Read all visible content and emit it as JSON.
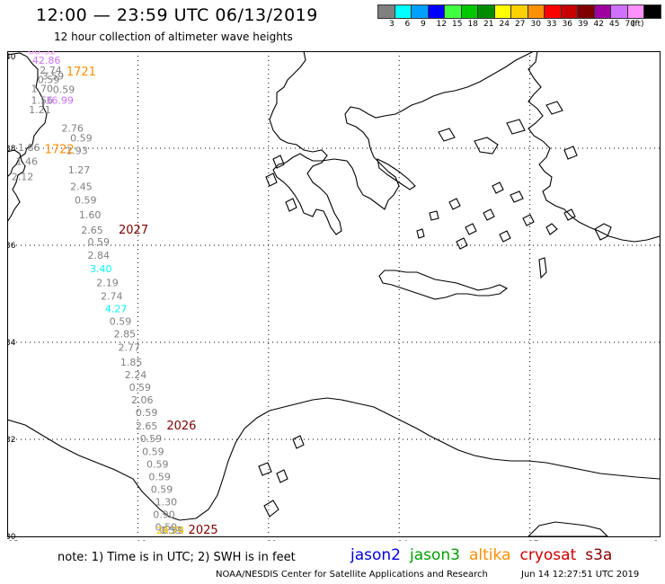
{
  "header": {
    "title": "12:00 — 23:59 UTC 06/13/2019",
    "subtitle": "12 hour collection of altimeter wave heights"
  },
  "color_scale": {
    "unit": "(ft)",
    "bins": [
      {
        "label": "3",
        "color": "#808080"
      },
      {
        "label": "6",
        "color": "#00ffff"
      },
      {
        "label": "9",
        "color": "#00a0ff"
      },
      {
        "label": "12",
        "color": "#0000ff"
      },
      {
        "label": "15",
        "color": "#40ff40"
      },
      {
        "label": "18",
        "color": "#00c800"
      },
      {
        "label": "21",
        "color": "#008c00"
      },
      {
        "label": "24",
        "color": "#ffff00"
      },
      {
        "label": "27",
        "color": "#ffd000"
      },
      {
        "label": "30",
        "color": "#ff9000"
      },
      {
        "label": "33",
        "color": "#ff0000"
      },
      {
        "label": "36",
        "color": "#c80000"
      },
      {
        "label": "39",
        "color": "#800000"
      },
      {
        "label": "42",
        "color": "#a000a0"
      },
      {
        "label": "45",
        "color": "#d070ff"
      },
      {
        "label": "70",
        "color": "#ff90ff"
      },
      {
        "label": "",
        "color": "#000000"
      }
    ]
  },
  "map": {
    "lon_labels": [
      "15",
      "18",
      "21",
      "24",
      "27",
      "30"
    ],
    "lat_labels": [
      "40",
      "38",
      "36",
      "34",
      "32",
      "30"
    ],
    "lon_range": [
      15,
      30
    ],
    "lat_range": [
      30,
      40
    ],
    "grid": "dotted",
    "wave_heights": [
      {
        "value": "68.52",
        "color": "#ff90ff",
        "lon": 15.8,
        "lat": 39.94
      },
      {
        "value": "42.86",
        "color": "#d070ff",
        "lon": 15.9,
        "lat": 39.74
      },
      {
        "value": "2.74",
        "color": "#808080",
        "lon": 16.0,
        "lat": 39.54
      },
      {
        "value": "3.59",
        "color": "#808080",
        "lon": 16.05,
        "lat": 39.42
      },
      {
        "value": "0.59",
        "color": "#808080",
        "lon": 15.95,
        "lat": 39.34
      },
      {
        "value": "1.70",
        "color": "#808080",
        "lon": 15.8,
        "lat": 39.16
      },
      {
        "value": "0.59",
        "color": "#808080",
        "lon": 16.3,
        "lat": 39.14
      },
      {
        "value": "1.56",
        "color": "#808080",
        "lon": 15.8,
        "lat": 38.92
      },
      {
        "value": "36.99",
        "color": "#d070ff",
        "lon": 16.2,
        "lat": 38.92
      },
      {
        "value": "1.21",
        "color": "#808080",
        "lon": 15.75,
        "lat": 38.72
      },
      {
        "value": "2.76",
        "color": "#808080",
        "lon": 16.5,
        "lat": 38.34
      },
      {
        "value": "0.59",
        "color": "#808080",
        "lon": 16.7,
        "lat": 38.14
      },
      {
        "value": "1.86",
        "color": "#808080",
        "lon": 15.5,
        "lat": 37.94
      },
      {
        "value": "1.93",
        "color": "#808080",
        "lon": 16.6,
        "lat": 37.88
      },
      {
        "value": "1.46",
        "color": "#808080",
        "lon": 15.45,
        "lat": 37.66
      },
      {
        "value": "1.27",
        "color": "#808080",
        "lon": 16.65,
        "lat": 37.48
      },
      {
        "value": "2.12",
        "color": "#808080",
        "lon": 15.35,
        "lat": 37.34
      },
      {
        "value": "2.45",
        "color": "#808080",
        "lon": 16.7,
        "lat": 37.14
      },
      {
        "value": "0.59",
        "color": "#808080",
        "lon": 16.8,
        "lat": 36.86
      },
      {
        "value": "1.60",
        "color": "#808080",
        "lon": 16.9,
        "lat": 36.56
      },
      {
        "value": "2.65",
        "color": "#808080",
        "lon": 16.95,
        "lat": 36.24
      },
      {
        "value": "0.59",
        "color": "#808080",
        "lon": 17.1,
        "lat": 36.0
      },
      {
        "value": "2.84",
        "color": "#808080",
        "lon": 17.1,
        "lat": 35.72
      },
      {
        "value": "3.40",
        "color": "#00ffff",
        "lon": 17.15,
        "lat": 35.44
      },
      {
        "value": "2.19",
        "color": "#808080",
        "lon": 17.3,
        "lat": 35.16
      },
      {
        "value": "2.74",
        "color": "#808080",
        "lon": 17.4,
        "lat": 34.88
      },
      {
        "value": "4.27",
        "color": "#00ffff",
        "lon": 17.5,
        "lat": 34.62
      },
      {
        "value": "0.59",
        "color": "#808080",
        "lon": 17.6,
        "lat": 34.36
      },
      {
        "value": "2.85",
        "color": "#808080",
        "lon": 17.7,
        "lat": 34.1
      },
      {
        "value": "2.77",
        "color": "#808080",
        "lon": 17.8,
        "lat": 33.82
      },
      {
        "value": "1.85",
        "color": "#808080",
        "lon": 17.85,
        "lat": 33.52
      },
      {
        "value": "2.24",
        "color": "#808080",
        "lon": 17.95,
        "lat": 33.26
      },
      {
        "value": "0.59",
        "color": "#808080",
        "lon": 18.05,
        "lat": 33.0
      },
      {
        "value": "2.06",
        "color": "#808080",
        "lon": 18.1,
        "lat": 32.74
      },
      {
        "value": "0.59",
        "color": "#808080",
        "lon": 18.2,
        "lat": 32.48
      },
      {
        "value": "2.65",
        "color": "#808080",
        "lon": 18.2,
        "lat": 32.2
      },
      {
        "value": "0.59",
        "color": "#808080",
        "lon": 18.3,
        "lat": 31.94
      },
      {
        "value": "0.59",
        "color": "#808080",
        "lon": 18.35,
        "lat": 31.68
      },
      {
        "value": "0.59",
        "color": "#808080",
        "lon": 18.45,
        "lat": 31.42
      },
      {
        "value": "0.59",
        "color": "#808080",
        "lon": 18.5,
        "lat": 31.16
      },
      {
        "value": "0.59",
        "color": "#808080",
        "lon": 18.55,
        "lat": 30.9
      },
      {
        "value": "1.30",
        "color": "#808080",
        "lon": 18.65,
        "lat": 30.64
      },
      {
        "value": "0.90",
        "color": "#808080",
        "lon": 18.6,
        "lat": 30.38
      },
      {
        "value": "0.59",
        "color": "#808080",
        "lon": 18.65,
        "lat": 30.12
      },
      {
        "value": "0.59",
        "color": "#808080",
        "lon": 18.75,
        "lat": 29.86
      },
      {
        "value": "0.59",
        "color": "#808080",
        "lon": 18.8,
        "lat": 29.6
      },
      {
        "value": "24.74",
        "color": "#ffd000",
        "lon": 18.75,
        "lat": 29.36
      }
    ],
    "pass_times": [
      {
        "time": "1721",
        "color": "#ff9000",
        "lon": 16.7,
        "lat": 39.5
      },
      {
        "time": "1722",
        "color": "#ff9000",
        "lon": 16.2,
        "lat": 37.9
      },
      {
        "time": "2027",
        "color": "#800000",
        "lon": 17.9,
        "lat": 36.24
      },
      {
        "time": "2026",
        "color": "#800000",
        "lon": 19.0,
        "lat": 32.2
      },
      {
        "time": "2025",
        "color": "#800000",
        "lon": 19.5,
        "lat": 29.36
      }
    ]
  },
  "note": "note: 1) Time is in UTC; 2) SWH is in feet",
  "satellites": [
    {
      "name": "jason2",
      "color": "#0000dd"
    },
    {
      "name": "jason3",
      "color": "#00a000"
    },
    {
      "name": "altika",
      "color": "#ff9000"
    },
    {
      "name": "cryosat",
      "color": "#cc0000"
    },
    {
      "name": "s3a",
      "color": "#880000"
    }
  ],
  "footer": {
    "center": "NOAA/NESDIS Center for Satellite Applications and Research",
    "timestamp": "Jun 14 12:27:51 UTC 2019"
  }
}
